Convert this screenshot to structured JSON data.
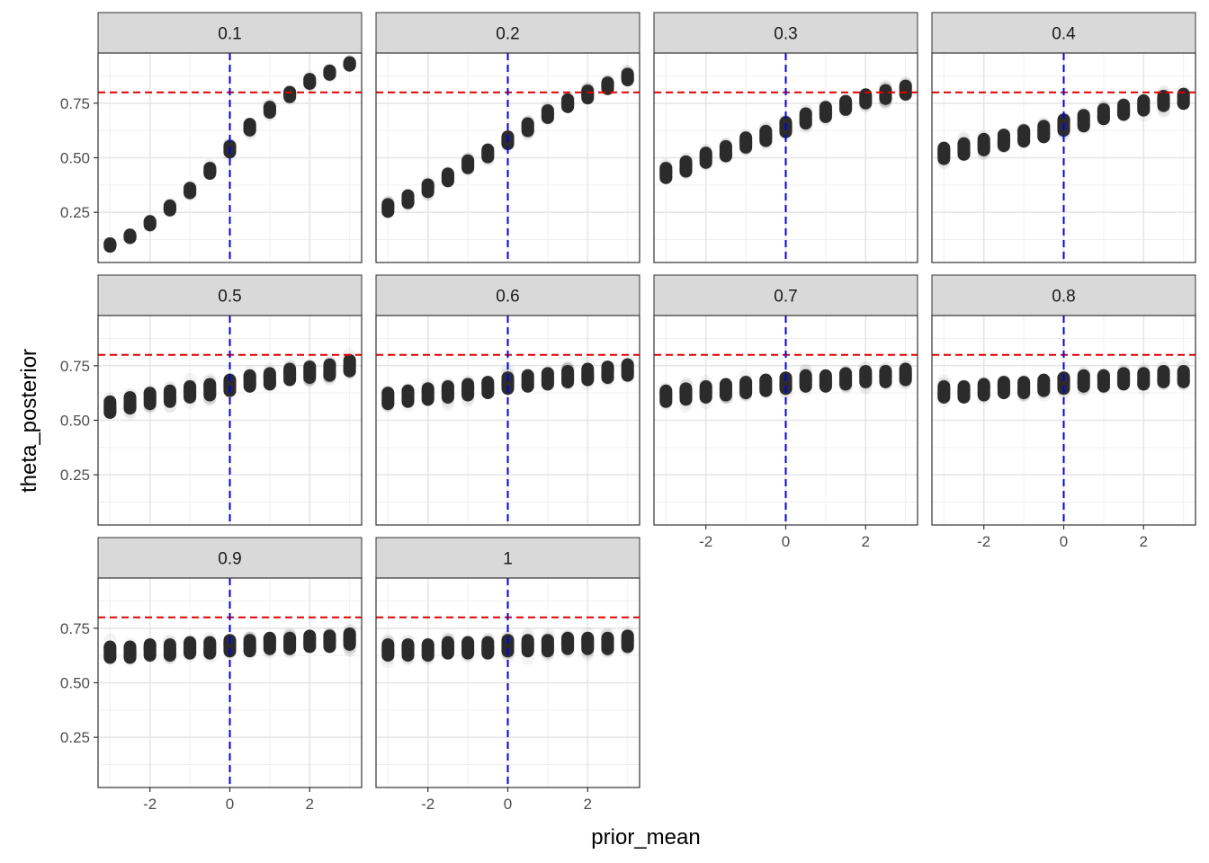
{
  "chart_data": {
    "type": "scatter",
    "layout": "facet_wrap",
    "xlabel": "prior_mean",
    "ylabel": "theta_posterior",
    "xlim": [
      -3.3,
      3.3
    ],
    "ylim": [
      0.02,
      0.98
    ],
    "x_ticks": [
      -2,
      0,
      2
    ],
    "x_tick_labels": [
      "-2",
      "0",
      "2"
    ],
    "y_ticks": [
      0.25,
      0.5,
      0.75
    ],
    "y_tick_labels": [
      "0.25",
      "0.50",
      "0.75"
    ],
    "grid": true,
    "point_color": "#2b2b2b",
    "reference_lines": [
      {
        "orientation": "horizontal",
        "value": 0.8,
        "color": "#e00000",
        "style": "dashed"
      },
      {
        "orientation": "vertical",
        "value": 0,
        "color": "#0000ee",
        "style": "dashed"
      }
    ],
    "x": [
      -3,
      -2.5,
      -2,
      -1.5,
      -1,
      -0.5,
      0,
      0.5,
      1,
      1.5,
      2,
      2.5,
      3
    ],
    "facets": [
      {
        "label": "0.1",
        "center": [
          0.1,
          0.14,
          0.2,
          0.27,
          0.35,
          0.44,
          0.54,
          0.64,
          0.72,
          0.79,
          0.85,
          0.89,
          0.93
        ],
        "spread": [
          0.012,
          0.012,
          0.015,
          0.018,
          0.02,
          0.022,
          0.025,
          0.025,
          0.022,
          0.02,
          0.018,
          0.015,
          0.012
        ]
      },
      {
        "label": "0.2",
        "center": [
          0.27,
          0.31,
          0.36,
          0.41,
          0.47,
          0.52,
          0.58,
          0.64,
          0.7,
          0.75,
          0.79,
          0.83,
          0.87
        ],
        "spread": [
          0.03,
          0.03,
          0.03,
          0.03,
          0.03,
          0.03,
          0.03,
          0.03,
          0.03,
          0.03,
          0.03,
          0.025,
          0.025
        ]
      },
      {
        "label": "0.3",
        "center": [
          0.43,
          0.46,
          0.5,
          0.53,
          0.57,
          0.6,
          0.64,
          0.68,
          0.71,
          0.74,
          0.77,
          0.79,
          0.81
        ],
        "spread": [
          0.04,
          0.04,
          0.04,
          0.04,
          0.04,
          0.04,
          0.04,
          0.04,
          0.04,
          0.035,
          0.035,
          0.035,
          0.035
        ]
      },
      {
        "label": "0.4",
        "center": [
          0.52,
          0.54,
          0.56,
          0.58,
          0.6,
          0.62,
          0.65,
          0.67,
          0.7,
          0.72,
          0.74,
          0.76,
          0.77
        ],
        "spread": [
          0.045,
          0.045,
          0.045,
          0.045,
          0.045,
          0.045,
          0.045,
          0.045,
          0.04,
          0.04,
          0.04,
          0.04,
          0.04
        ]
      },
      {
        "label": "0.5",
        "center": [
          0.56,
          0.58,
          0.6,
          0.61,
          0.63,
          0.64,
          0.66,
          0.68,
          0.69,
          0.71,
          0.72,
          0.73,
          0.75
        ],
        "spread": [
          0.045,
          0.045,
          0.045,
          0.045,
          0.045,
          0.045,
          0.045,
          0.045,
          0.045,
          0.045,
          0.045,
          0.045,
          0.045
        ]
      },
      {
        "label": "0.6",
        "center": [
          0.6,
          0.61,
          0.62,
          0.63,
          0.64,
          0.65,
          0.67,
          0.68,
          0.69,
          0.7,
          0.71,
          0.72,
          0.73
        ],
        "spread": [
          0.045,
          0.045,
          0.045,
          0.045,
          0.045,
          0.045,
          0.045,
          0.045,
          0.045,
          0.045,
          0.045,
          0.045,
          0.045
        ]
      },
      {
        "label": "0.7",
        "center": [
          0.61,
          0.62,
          0.63,
          0.64,
          0.65,
          0.66,
          0.67,
          0.68,
          0.68,
          0.69,
          0.7,
          0.7,
          0.71
        ],
        "spread": [
          0.045,
          0.045,
          0.045,
          0.045,
          0.045,
          0.045,
          0.045,
          0.045,
          0.045,
          0.045,
          0.045,
          0.045,
          0.045
        ]
      },
      {
        "label": "0.8",
        "center": [
          0.63,
          0.63,
          0.64,
          0.65,
          0.65,
          0.66,
          0.67,
          0.68,
          0.68,
          0.69,
          0.69,
          0.7,
          0.7
        ],
        "spread": [
          0.045,
          0.045,
          0.045,
          0.045,
          0.045,
          0.045,
          0.045,
          0.045,
          0.045,
          0.045,
          0.045,
          0.045,
          0.045
        ]
      },
      {
        "label": "0.9",
        "center": [
          0.64,
          0.64,
          0.65,
          0.65,
          0.66,
          0.66,
          0.67,
          0.67,
          0.68,
          0.68,
          0.69,
          0.69,
          0.7
        ],
        "spread": [
          0.045,
          0.045,
          0.045,
          0.045,
          0.045,
          0.045,
          0.045,
          0.045,
          0.045,
          0.045,
          0.045,
          0.045,
          0.045
        ]
      },
      {
        "label": "1",
        "center": [
          0.65,
          0.65,
          0.65,
          0.66,
          0.66,
          0.66,
          0.67,
          0.67,
          0.67,
          0.68,
          0.68,
          0.68,
          0.69
        ],
        "spread": [
          0.045,
          0.045,
          0.045,
          0.045,
          0.045,
          0.045,
          0.045,
          0.045,
          0.045,
          0.045,
          0.045,
          0.045,
          0.045
        ]
      }
    ]
  }
}
